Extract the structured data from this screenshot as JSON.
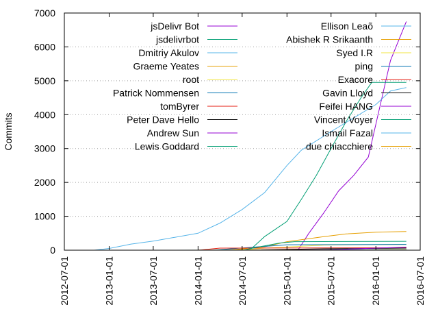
{
  "chart_data": {
    "type": "line",
    "title": "",
    "xlabel": "",
    "ylabel": "Commits",
    "xlim": [
      "2012-07-01",
      "2016-07-01"
    ],
    "ylim": [
      0,
      7000
    ],
    "x_ticks": [
      "2012-07-01",
      "2013-01-01",
      "2013-07-01",
      "2014-01-01",
      "2014-07-01",
      "2015-01-01",
      "2015-07-01",
      "2016-01-01",
      "2016-07-01"
    ],
    "y_ticks": [
      0,
      1000,
      2000,
      3000,
      4000,
      5000,
      6000,
      7000
    ],
    "grid": "horizontal dotted",
    "legend_placement": "top, two columns",
    "series": [
      {
        "name": "jsDelivr Bot",
        "color": "#9400d3",
        "points": [
          [
            "2015-02-15",
            0
          ],
          [
            "2015-04-01",
            500
          ],
          [
            "2015-06-01",
            1100
          ],
          [
            "2015-08-01",
            1750
          ],
          [
            "2015-10-01",
            2200
          ],
          [
            "2015-12-01",
            2750
          ],
          [
            "2016-01-10",
            4000
          ],
          [
            "2016-03-01",
            5600
          ],
          [
            "2016-05-05",
            6750
          ]
        ]
      },
      {
        "name": "jsdelivrbot",
        "color": "#009e73",
        "points": [
          [
            "2014-08-01",
            0
          ],
          [
            "2014-10-01",
            400
          ],
          [
            "2015-01-01",
            850
          ],
          [
            "2015-03-01",
            1500
          ],
          [
            "2015-05-01",
            2200
          ],
          [
            "2015-07-01",
            3000
          ],
          [
            "2015-09-01",
            3800
          ],
          [
            "2015-11-01",
            4500
          ],
          [
            "2015-12-15",
            4950
          ],
          [
            "2016-05-05",
            4950
          ]
        ]
      },
      {
        "name": "Dmitriy Akulov",
        "color": "#56b4e9",
        "points": [
          [
            "2012-11-01",
            0
          ],
          [
            "2013-01-01",
            50
          ],
          [
            "2013-04-01",
            180
          ],
          [
            "2013-07-01",
            270
          ],
          [
            "2014-01-01",
            500
          ],
          [
            "2014-04-01",
            800
          ],
          [
            "2014-07-01",
            1200
          ],
          [
            "2014-10-01",
            1700
          ],
          [
            "2015-01-01",
            2500
          ],
          [
            "2015-03-01",
            2950
          ],
          [
            "2015-07-01",
            3500
          ],
          [
            "2015-10-01",
            3900
          ],
          [
            "2016-01-01",
            4300
          ],
          [
            "2016-03-01",
            4700
          ],
          [
            "2016-05-05",
            4800
          ]
        ]
      },
      {
        "name": "Graeme Yeates",
        "color": "#e69f00",
        "points": [
          [
            "2014-05-01",
            0
          ],
          [
            "2014-10-01",
            100
          ],
          [
            "2015-01-01",
            250
          ],
          [
            "2015-06-01",
            400
          ],
          [
            "2015-09-01",
            480
          ],
          [
            "2016-01-01",
            530
          ],
          [
            "2016-05-05",
            550
          ]
        ]
      },
      {
        "name": "root",
        "color": "#f0e442",
        "points": [
          [
            "2014-06-01",
            0
          ],
          [
            "2014-10-01",
            60
          ],
          [
            "2015-06-01",
            150
          ],
          [
            "2016-05-05",
            170
          ]
        ]
      },
      {
        "name": "Patrick Nommensen",
        "color": "#0072b2",
        "points": [
          [
            "2014-03-01",
            0
          ],
          [
            "2014-08-01",
            80
          ],
          [
            "2015-01-01",
            160
          ],
          [
            "2016-05-05",
            170
          ]
        ]
      },
      {
        "name": "tomByrer",
        "color": "#e51e10",
        "points": [
          [
            "2014-01-01",
            0
          ],
          [
            "2014-04-01",
            60
          ],
          [
            "2016-05-05",
            70
          ]
        ]
      },
      {
        "name": "Peter Dave Hello",
        "color": "#000000",
        "points": [
          [
            "2014-06-01",
            0
          ],
          [
            "2015-06-01",
            40
          ],
          [
            "2016-05-05",
            60
          ]
        ]
      },
      {
        "name": "Andrew Sun",
        "color": "#9400d3",
        "points": [
          [
            "2015-05-01",
            0
          ],
          [
            "2016-01-01",
            60
          ],
          [
            "2016-05-05",
            90
          ]
        ]
      },
      {
        "name": "Lewis Goddard",
        "color": "#009e73",
        "points": [
          [
            "2014-07-01",
            0
          ],
          [
            "2014-12-01",
            210
          ],
          [
            "2015-02-01",
            250
          ],
          [
            "2016-05-05",
            260
          ]
        ]
      },
      {
        "name": "Ellison Leaõ",
        "color": "#56b4e9",
        "points": [
          [
            "2013-08-01",
            0
          ],
          [
            "2016-05-05",
            20
          ]
        ]
      },
      {
        "name": "Abishek R Srikaanth",
        "color": "#e69f00",
        "points": [
          [
            "2013-10-01",
            0
          ],
          [
            "2016-05-05",
            15
          ]
        ]
      },
      {
        "name": "Syed I.R",
        "color": "#f0e442",
        "points": [
          [
            "2014-02-01",
            0
          ],
          [
            "2016-05-05",
            15
          ]
        ]
      },
      {
        "name": "ping",
        "color": "#0072b2",
        "points": [
          [
            "2014-06-01",
            0
          ],
          [
            "2016-05-05",
            12
          ]
        ]
      },
      {
        "name": "Exacore",
        "color": "#e51e10",
        "points": [
          [
            "2014-04-01",
            0
          ],
          [
            "2016-05-05",
            10
          ]
        ]
      },
      {
        "name": "Gavin Lloyd",
        "color": "#000000",
        "points": [
          [
            "2014-09-01",
            0
          ],
          [
            "2016-05-05",
            10
          ]
        ]
      },
      {
        "name": "Feifei HANG",
        "color": "#9400d3",
        "points": [
          [
            "2015-01-01",
            0
          ],
          [
            "2016-05-05",
            8
          ]
        ]
      },
      {
        "name": "Vincent Voyer",
        "color": "#009e73",
        "points": [
          [
            "2015-03-01",
            0
          ],
          [
            "2016-05-05",
            8
          ]
        ]
      },
      {
        "name": "Ismail Fazal",
        "color": "#56b4e9",
        "points": [
          [
            "2015-06-01",
            0
          ],
          [
            "2016-05-05",
            6
          ]
        ]
      },
      {
        "name": "due chiacchiere",
        "color": "#e69f00",
        "points": [
          [
            "2015-09-01",
            0
          ],
          [
            "2016-05-05",
            6
          ]
        ]
      }
    ]
  }
}
